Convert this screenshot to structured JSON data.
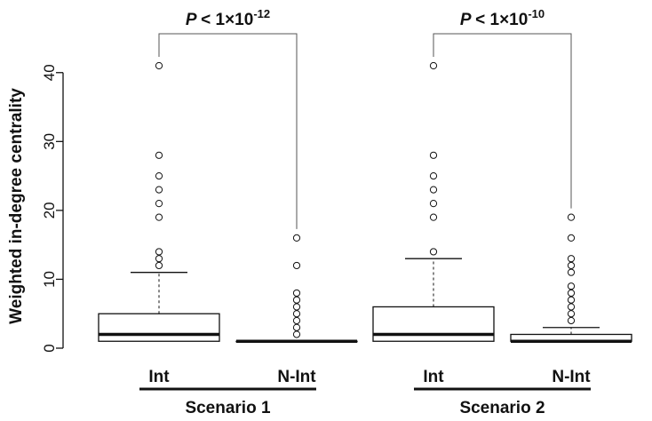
{
  "chart_data": {
    "type": "boxplot",
    "ylabel": "Weighted in-degree centrality",
    "ylim": [
      0,
      41
    ],
    "yticks": [
      0,
      10,
      20,
      30,
      40
    ],
    "categories": [
      "Int",
      "N-Int",
      "Int",
      "N-Int"
    ],
    "groups": [
      {
        "label": "Scenario 1",
        "members": [
          0,
          1
        ]
      },
      {
        "label": "Scenario 2",
        "members": [
          2,
          3
        ]
      }
    ],
    "boxes": [
      {
        "category": "Int",
        "q1": 1,
        "median": 2,
        "q3": 5,
        "whisker_low": 1,
        "whisker_high": 11,
        "outliers": [
          12,
          13,
          14,
          19,
          21,
          23,
          25,
          28,
          41
        ]
      },
      {
        "category": "N-Int",
        "q1": 1,
        "median": 1,
        "q3": 1,
        "whisker_low": 1,
        "whisker_high": 1,
        "outliers": [
          2,
          3,
          4,
          5,
          6,
          7,
          8,
          12,
          16
        ]
      },
      {
        "category": "Int",
        "q1": 1,
        "median": 2,
        "q3": 6,
        "whisker_low": 1,
        "whisker_high": 13,
        "outliers": [
          14,
          19,
          21,
          23,
          25,
          28,
          41
        ]
      },
      {
        "category": "N-Int",
        "q1": 1,
        "median": 1,
        "q3": 2,
        "whisker_low": 1,
        "whisker_high": 3,
        "outliers": [
          4,
          5,
          6,
          7,
          8,
          9,
          11,
          12,
          13,
          16,
          19
        ]
      }
    ],
    "comparisons": [
      {
        "between": [
          0,
          1
        ],
        "p_prefix": "P",
        "p_text": "< 1×10",
        "p_exp": "-12"
      },
      {
        "between": [
          2,
          3
        ],
        "p_prefix": "P",
        "p_text": "< 1×10",
        "p_exp": "-10"
      }
    ],
    "grid": false,
    "colors": {
      "box_fill": "#ffffff",
      "stroke": "#111111",
      "bracket": "#555555"
    }
  }
}
